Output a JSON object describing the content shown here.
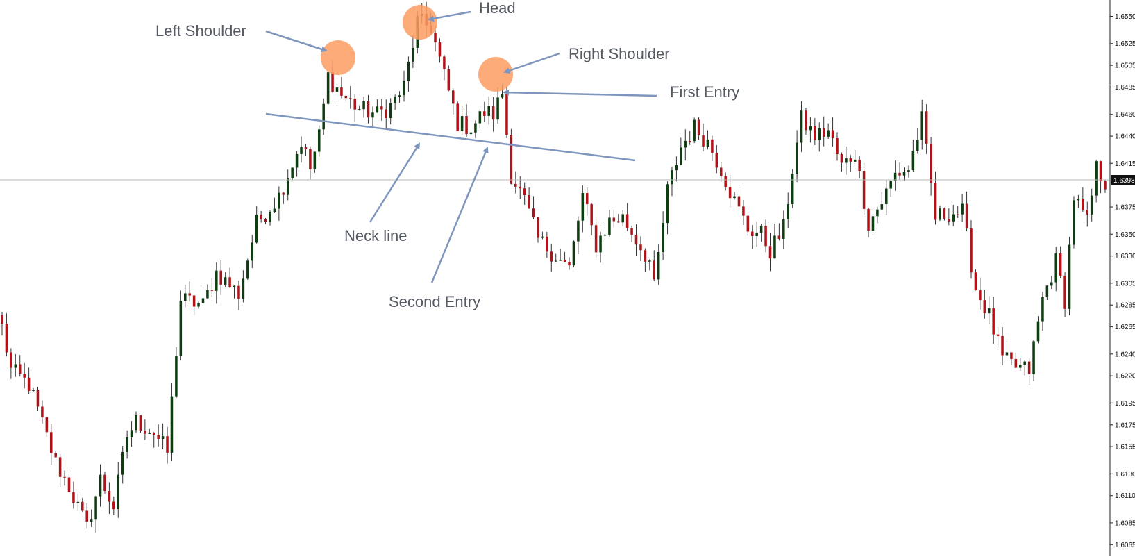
{
  "chart_data": {
    "type": "candlestick",
    "y_axis": {
      "position": "right",
      "ylim": [
        1.6055,
        1.6565
      ],
      "tick_labels": [
        "1.6550",
        "1.6525",
        "1.6505",
        "1.6485",
        "1.6460",
        "1.6440",
        "1.6415",
        "1.6375",
        "1.6350",
        "1.6330",
        "1.6305",
        "1.6285",
        "1.6265",
        "1.6240",
        "1.6220",
        "1.6195",
        "1.6175",
        "1.6155",
        "1.6130",
        "1.6110",
        "1.6085",
        "1.6065"
      ],
      "current_price": "1.6398"
    },
    "candle_count": 248,
    "colors": {
      "bull": "#0f3d12",
      "bear": "#b0141a",
      "wick": "#333333",
      "trendline": "#7e95bd",
      "highlight": "#fb9c62",
      "price_line": "#b9b9b9",
      "price_tag_bg": "#111111",
      "price_tag_text": "#ffffff"
    },
    "anchors": [
      [
        0,
        1.6265
      ],
      [
        2,
        1.6225
      ],
      [
        6,
        1.6212
      ],
      [
        12,
        1.614
      ],
      [
        15,
        1.6118
      ],
      [
        19,
        1.608
      ],
      [
        22,
        1.6125
      ],
      [
        25,
        1.61
      ],
      [
        28,
        1.6165
      ],
      [
        30,
        1.6178
      ],
      [
        34,
        1.6168
      ],
      [
        37,
        1.615
      ],
      [
        40,
        1.629
      ],
      [
        45,
        1.6285
      ],
      [
        48,
        1.6315
      ],
      [
        53,
        1.6295
      ],
      [
        57,
        1.636
      ],
      [
        62,
        1.6385
      ],
      [
        67,
        1.6435
      ],
      [
        69,
        1.641
      ],
      [
        71,
        1.644
      ],
      [
        73,
        1.6495
      ],
      [
        76,
        1.6478
      ],
      [
        80,
        1.6465
      ],
      [
        84,
        1.646
      ],
      [
        87,
        1.6468
      ],
      [
        90,
        1.6485
      ],
      [
        93,
        1.6545
      ],
      [
        96,
        1.654
      ],
      [
        99,
        1.6495
      ],
      [
        102,
        1.6452
      ],
      [
        105,
        1.6448
      ],
      [
        108,
        1.6462
      ],
      [
        110,
        1.646
      ],
      [
        112,
        1.648
      ],
      [
        114,
        1.6405
      ],
      [
        117,
        1.638
      ],
      [
        120,
        1.6345
      ],
      [
        124,
        1.633
      ],
      [
        127,
        1.6318
      ],
      [
        130,
        1.6385
      ],
      [
        133,
        1.634
      ],
      [
        136,
        1.6362
      ],
      [
        139,
        1.6365
      ],
      [
        142,
        1.6345
      ],
      [
        145,
        1.6325
      ],
      [
        146,
        1.63
      ],
      [
        149,
        1.639
      ],
      [
        152,
        1.643
      ],
      [
        155,
        1.6448
      ],
      [
        158,
        1.6435
      ],
      [
        161,
        1.641
      ],
      [
        164,
        1.638
      ],
      [
        167,
        1.6355
      ],
      [
        170,
        1.635
      ],
      [
        172,
        1.6335
      ],
      [
        175,
        1.6355
      ],
      [
        177,
        1.641
      ],
      [
        179,
        1.6455
      ],
      [
        182,
        1.644
      ],
      [
        185,
        1.6445
      ],
      [
        188,
        1.6412
      ],
      [
        191,
        1.6425
      ],
      [
        194,
        1.636
      ],
      [
        197,
        1.638
      ],
      [
        200,
        1.6405
      ],
      [
        203,
        1.641
      ],
      [
        206,
        1.6455
      ],
      [
        209,
        1.6365
      ],
      [
        212,
        1.637
      ],
      [
        215,
        1.637
      ],
      [
        218,
        1.63
      ],
      [
        221,
        1.6275
      ],
      [
        224,
        1.6235
      ],
      [
        227,
        1.6228
      ],
      [
        230,
        1.6225
      ],
      [
        233,
        1.629
      ],
      [
        236,
        1.6325
      ],
      [
        238,
        1.629
      ],
      [
        240,
        1.6385
      ],
      [
        243,
        1.636
      ],
      [
        245,
        1.641
      ],
      [
        247,
        1.6398
      ]
    ],
    "annotations": [
      {
        "label": "Left Shoulder"
      },
      {
        "label": "Head"
      },
      {
        "label": "Right Shoulder"
      },
      {
        "label": "First Entry"
      },
      {
        "label": "Neck line"
      },
      {
        "label": "Second Entry"
      }
    ]
  }
}
